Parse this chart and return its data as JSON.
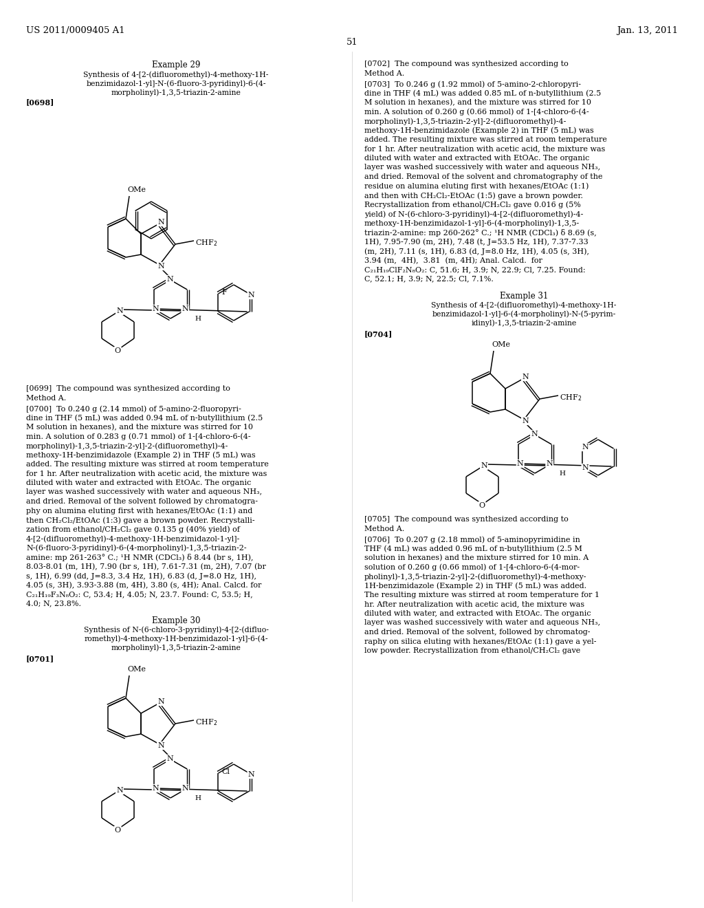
{
  "page_number": "51",
  "patent_number": "US 2011/0009405 A1",
  "patent_date": "Jan. 13, 2011",
  "background_color": "#ffffff",
  "text_color": "#000000"
}
